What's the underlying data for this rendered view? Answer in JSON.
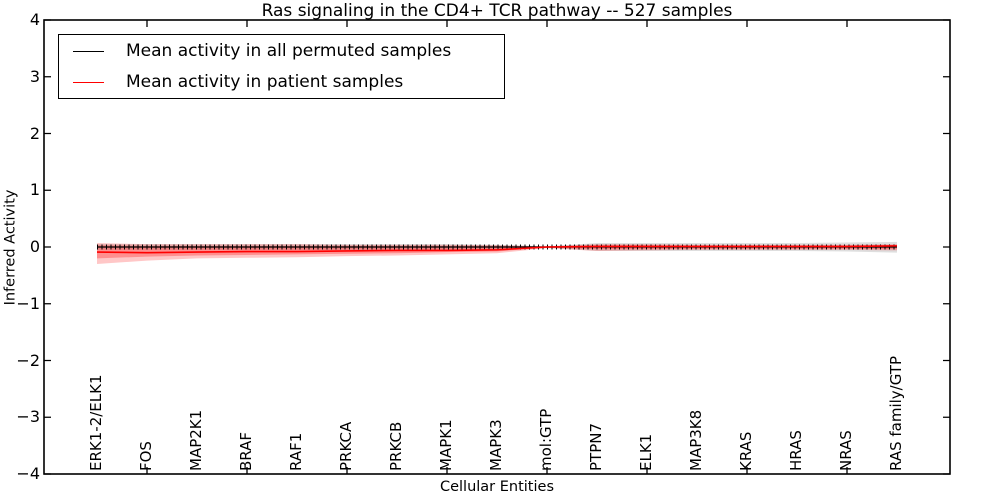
{
  "title": "Ras signaling in the CD4+ TCR pathway -- 527 samples",
  "legend": {
    "items": [
      {
        "label": "Mean activity in all permuted samples",
        "color": "#000000"
      },
      {
        "label": "Mean activity in patient samples",
        "color": "#ff0000"
      }
    ]
  },
  "axes": {
    "ylabel": "Inferred Activity",
    "xlabel": "Cellular Entities",
    "y_tick_labels": [
      "4",
      "3",
      "2",
      "1",
      "0",
      "−1",
      "−2",
      "−3",
      "−4"
    ]
  },
  "chart_data": {
    "type": "line",
    "title": "Ras signaling in the CD4+ TCR pathway -- 527 samples",
    "xlabel": "Cellular Entities",
    "ylabel": "Inferred Activity",
    "ylim": [
      -4,
      4
    ],
    "y_ticks": [
      4,
      3,
      2,
      1,
      0,
      -1,
      -2,
      -3,
      -4
    ],
    "grid": false,
    "legend_position": "upper left",
    "categories": [
      "ERK1-2/ELK1",
      "FOS",
      "MAP2K1",
      "BRAF",
      "RAF1",
      "PRKCA",
      "PRKCB",
      "MAPK1",
      "MAPK3",
      "mol:GTP",
      "PTPN7",
      "ELK1",
      "MAP3K8",
      "KRAS",
      "HRAS",
      "NRAS",
      "RAS family/GTP"
    ],
    "x_major_tick_indices": [
      1,
      3,
      5,
      7,
      9,
      11,
      13,
      15
    ],
    "series": [
      {
        "name": "Mean activity in all permuted samples",
        "color": "#000000",
        "marker": "|",
        "values": [
          0,
          0,
          0,
          0,
          0,
          0,
          0,
          0,
          0,
          0,
          0,
          0,
          0,
          0,
          0,
          0,
          0
        ]
      },
      {
        "name": "Mean activity in patient samples",
        "color": "#ff0000",
        "marker": "none",
        "values": [
          -0.09,
          -0.1,
          -0.09,
          -0.08,
          -0.08,
          -0.07,
          -0.06,
          -0.06,
          -0.05,
          0.0,
          0.01,
          0.01,
          0.01,
          0.01,
          0.01,
          0.01,
          0.02
        ]
      }
    ],
    "bands": [
      {
        "name": "permuted-samples-std-band",
        "color": "rgba(0,0,0,0.13)",
        "upper": [
          0.05,
          0.05,
          0.05,
          0.05,
          0.05,
          0.05,
          0.05,
          0.05,
          0.04,
          0.01,
          0.07,
          0.07,
          0.07,
          0.07,
          0.07,
          0.08,
          0.09
        ],
        "lower": [
          -0.05,
          -0.05,
          -0.05,
          -0.05,
          -0.05,
          -0.05,
          -0.05,
          -0.05,
          -0.04,
          -0.01,
          -0.07,
          -0.07,
          -0.07,
          -0.07,
          -0.07,
          -0.08,
          -0.1
        ]
      },
      {
        "name": "patient-samples-std-band-outer",
        "color": "rgba(255,0,0,0.22)",
        "upper": [
          0.07,
          0.05,
          0.05,
          0.05,
          0.05,
          0.04,
          0.04,
          0.04,
          0.03,
          0.01,
          0.05,
          0.05,
          0.04,
          0.04,
          0.04,
          0.04,
          0.05
        ],
        "lower": [
          -0.3,
          -0.24,
          -0.2,
          -0.19,
          -0.18,
          -0.16,
          -0.15,
          -0.13,
          -0.11,
          -0.02,
          -0.07,
          -0.06,
          -0.05,
          -0.05,
          -0.05,
          -0.05,
          -0.06
        ]
      },
      {
        "name": "patient-samples-std-band-inner",
        "color": "rgba(255,0,0,0.28)",
        "upper": [
          0.03,
          0.02,
          0.02,
          0.02,
          0.02,
          0.02,
          0.02,
          0.02,
          0.02,
          0.01,
          0.03,
          0.03,
          0.02,
          0.02,
          0.02,
          0.02,
          0.03
        ],
        "lower": [
          -0.2,
          -0.17,
          -0.15,
          -0.14,
          -0.13,
          -0.12,
          -0.11,
          -0.09,
          -0.08,
          -0.01,
          -0.04,
          -0.04,
          -0.03,
          -0.03,
          -0.03,
          -0.03,
          -0.04
        ]
      }
    ]
  }
}
